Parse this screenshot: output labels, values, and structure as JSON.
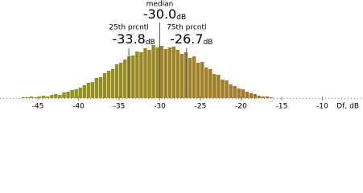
{
  "chart_data": {
    "type": "histogram",
    "bins": [
      -47,
      -46.5,
      -46,
      -45.5,
      -45,
      -44.5,
      -44,
      -43.5,
      -43,
      -42.5,
      -42,
      -41.5,
      -41,
      -40.5,
      -40,
      -39.5,
      -39,
      -38.5,
      -38,
      -37.5,
      -37,
      -36.5,
      -36,
      -35.5,
      -35,
      -34.5,
      -34,
      -33.5,
      -33,
      -32.5,
      -32,
      -31.5,
      -31,
      -30.5,
      -30,
      -29.5,
      -29,
      -28.5,
      -28,
      -27.5,
      -27,
      -26.5,
      -26,
      -25.5,
      -25,
      -24.5,
      -24,
      -23.5,
      -23,
      -22.5,
      -22,
      -21.5,
      -21,
      -20.5,
      -20,
      -19.5,
      -19,
      -18.5,
      -18,
      -17.5,
      -17,
      -16.5,
      -16
    ],
    "values": [
      1,
      1,
      2,
      1,
      2,
      3,
      2,
      4,
      5,
      4,
      7,
      8,
      10,
      11,
      13,
      16,
      19,
      20,
      25,
      26,
      31,
      34,
      36,
      42,
      44,
      48,
      52,
      53,
      58,
      57,
      62,
      60,
      66,
      63,
      65,
      61,
      63,
      64,
      60,
      55,
      57,
      50,
      52,
      44,
      45,
      38,
      36,
      30,
      29,
      23,
      22,
      17,
      15,
      12,
      11,
      8,
      6,
      5,
      3,
      2,
      2,
      1
    ],
    "colors": [
      "#8c9c1c",
      "#a8742c"
    ],
    "xlim": [
      -49.65,
      -5
    ],
    "ylim": [
      0,
      100
    ],
    "xticks": [
      -45,
      -40,
      -35,
      -30,
      -25,
      -20,
      -15,
      -10
    ],
    "xlabel": "Df, dB",
    "annotations": [
      {
        "label": "median",
        "value": -30.0,
        "value_label": "-30.0",
        "unit": "dB"
      },
      {
        "label": "25th prcntl",
        "value": -33.8,
        "value_label": "-33.8",
        "unit": "dB"
      },
      {
        "label": "75th prcntl",
        "value": -26.7,
        "value_label": "-26.7",
        "unit": "dB"
      }
    ]
  }
}
